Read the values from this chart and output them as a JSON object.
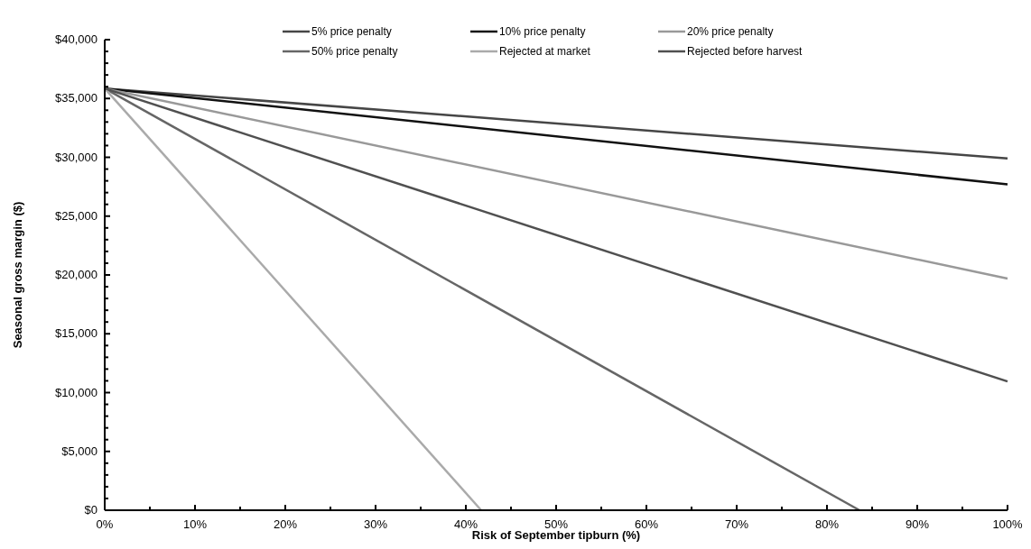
{
  "chart_data": {
    "type": "line",
    "xlabel": "Risk of September tipburn (%)",
    "ylabel": "Seasonal gross margin ($)",
    "xlim": [
      0,
      100
    ],
    "ylim": [
      0,
      40000
    ],
    "xticks": [
      {
        "value": 0,
        "label": "0%"
      },
      {
        "value": 5,
        "label": null
      },
      {
        "value": 10,
        "label": "10%"
      },
      {
        "value": 15,
        "label": null
      },
      {
        "value": 20,
        "label": "20%"
      },
      {
        "value": 25,
        "label": null
      },
      {
        "value": 30,
        "label": "30%"
      },
      {
        "value": 35,
        "label": null
      },
      {
        "value": 40,
        "label": "40%"
      },
      {
        "value": 45,
        "label": null
      },
      {
        "value": 50,
        "label": "50%"
      },
      {
        "value": 55,
        "label": null
      },
      {
        "value": 60,
        "label": "60%"
      },
      {
        "value": 65,
        "label": null
      },
      {
        "value": 70,
        "label": "70%"
      },
      {
        "value": 75,
        "label": null
      },
      {
        "value": 80,
        "label": "80%"
      },
      {
        "value": 85,
        "label": null
      },
      {
        "value": 90,
        "label": "90%"
      },
      {
        "value": 95,
        "label": null
      },
      {
        "value": 100,
        "label": "100%"
      }
    ],
    "yticks": [
      {
        "value": 0,
        "label": "$0"
      },
      {
        "value": 1000,
        "label": null
      },
      {
        "value": 2000,
        "label": null
      },
      {
        "value": 3000,
        "label": null
      },
      {
        "value": 4000,
        "label": null
      },
      {
        "value": 5000,
        "label": "$5,000"
      },
      {
        "value": 6000,
        "label": null
      },
      {
        "value": 7000,
        "label": null
      },
      {
        "value": 8000,
        "label": null
      },
      {
        "value": 9000,
        "label": null
      },
      {
        "value": 10000,
        "label": "$10,000"
      },
      {
        "value": 11000,
        "label": null
      },
      {
        "value": 12000,
        "label": null
      },
      {
        "value": 13000,
        "label": null
      },
      {
        "value": 14000,
        "label": null
      },
      {
        "value": 15000,
        "label": "$15,000"
      },
      {
        "value": 16000,
        "label": null
      },
      {
        "value": 17000,
        "label": null
      },
      {
        "value": 18000,
        "label": null
      },
      {
        "value": 19000,
        "label": null
      },
      {
        "value": 20000,
        "label": "$20,000"
      },
      {
        "value": 21000,
        "label": null
      },
      {
        "value": 22000,
        "label": null
      },
      {
        "value": 23000,
        "label": null
      },
      {
        "value": 24000,
        "label": null
      },
      {
        "value": 25000,
        "label": "$25,000"
      },
      {
        "value": 26000,
        "label": null
      },
      {
        "value": 27000,
        "label": null
      },
      {
        "value": 28000,
        "label": null
      },
      {
        "value": 29000,
        "label": null
      },
      {
        "value": 30000,
        "label": "$30,000"
      },
      {
        "value": 31000,
        "label": null
      },
      {
        "value": 32000,
        "label": null
      },
      {
        "value": 33000,
        "label": null
      },
      {
        "value": 34000,
        "label": null
      },
      {
        "value": 35000,
        "label": "$35,000"
      },
      {
        "value": 36000,
        "label": null
      },
      {
        "value": 37000,
        "label": null
      },
      {
        "value": 38000,
        "label": null
      },
      {
        "value": 39000,
        "label": null
      },
      {
        "value": 40000,
        "label": "$40,000"
      }
    ],
    "grid": false,
    "legend": "top",
    "line_style": "solid",
    "series": [
      {
        "name": "5% price penalty",
        "color": "#464646",
        "x": [
          0,
          100
        ],
        "values": [
          35850,
          29900
        ]
      },
      {
        "name": "10% price penalty",
        "color": "#111111",
        "x": [
          0,
          100
        ],
        "values": [
          35850,
          27700
        ]
      },
      {
        "name": "20% price penalty",
        "color": "#999999",
        "x": [
          0,
          100
        ],
        "values": [
          35850,
          19700
        ]
      },
      {
        "name": "50% price penalty",
        "color": "#666666",
        "x": [
          0,
          83.6
        ],
        "values": [
          35850,
          0
        ]
      },
      {
        "name": "Rejected at market",
        "color": "#aaaaaa",
        "x": [
          0,
          41.7
        ],
        "values": [
          35850,
          0
        ]
      },
      {
        "name": "Rejected before harvest",
        "color": "#505050",
        "x": [
          0,
          100
        ],
        "values": [
          35850,
          10950
        ]
      }
    ]
  }
}
